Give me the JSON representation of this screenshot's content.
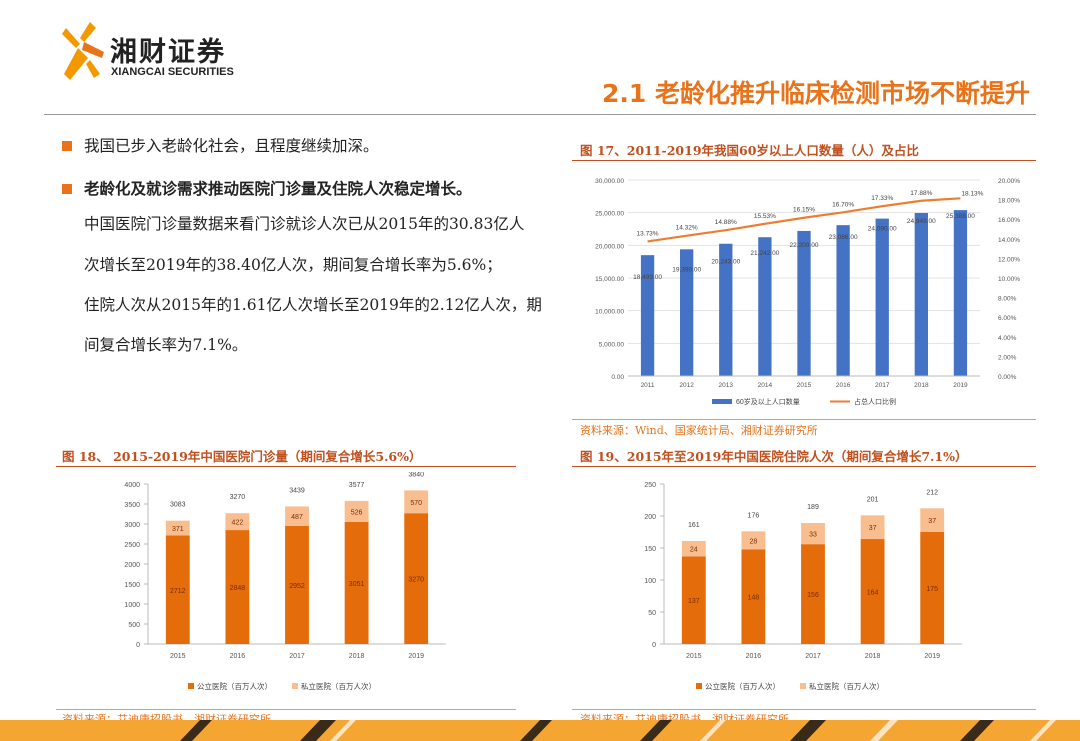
{
  "header": {
    "logo_cn": "湘财证券",
    "logo_en": "XIANGCAI SECURITIES",
    "page_title": "2.1 老龄化推升临床检测市场不断提升"
  },
  "bullets": {
    "b1": "我国已步入老龄化社会，且程度继续加深。",
    "b2": "老龄化及就诊需求推动医院门诊量及住院人次稳定增长。",
    "lines": [
      "中国医院门诊量数据来看门诊就诊人次已从2015年的30.83亿人",
      "次增长至2019年的38.40亿人次，期间复合增长率为5.6%；",
      "住院人次从2015年的1.61亿人次增长至2019年的2.12亿人次，期",
      "间复合增长率为7.1%。"
    ]
  },
  "figures": {
    "fig17": {
      "caption": "图 17、2011-2019年我国60岁以上人口数量（人）及占比",
      "source": "资料来源：Wind、国家统计局、湘财证券研究所"
    },
    "fig18": {
      "caption": "图 18、 2015-2019年中国医院门诊量（期间复合增长5.6%）",
      "source": "资料来源：艾迪康招股书、湘财证券研究所"
    },
    "fig19": {
      "caption": "图 19、2015年至2019年中国医院住院人次（期间复合增长7.1%）",
      "source": "资料来源：艾迪康招股书、湘财证券研究所"
    }
  },
  "chart_data": [
    {
      "type": "bar",
      "id": "fig17",
      "categories": [
        "2011",
        "2012",
        "2013",
        "2014",
        "2015",
        "2016",
        "2017",
        "2018",
        "2019"
      ],
      "series": [
        {
          "name": "60岁及以上人口数量",
          "values": [
            18499.0,
            19390.0,
            20243.0,
            21242.0,
            22200.0,
            23086.0,
            24090.0,
            24949.0,
            25388.0
          ],
          "labels": [
            "18,499.00",
            "19,390.00",
            "20,243.00",
            "21,242.00",
            "22,200.00",
            "23,086.00",
            "24,090.00",
            "24,949.00",
            "25,388.00"
          ],
          "color": "#4472C4",
          "axis": "left"
        },
        {
          "name": "占总人口比例",
          "type": "line",
          "values": [
            13.73,
            14.32,
            14.88,
            15.53,
            16.15,
            16.7,
            17.33,
            17.88,
            18.13
          ],
          "labels": [
            "13.73%",
            "14.32%",
            "14.88%",
            "15.53%",
            "16.15%",
            "16.70%",
            "17.33%",
            "17.88%",
            "18.13%"
          ],
          "color": "#ED7D31",
          "axis": "right"
        }
      ],
      "y_left": {
        "min": 0,
        "max": 30000,
        "ticks": [
          "0.00",
          "5,000.00",
          "10,000.00",
          "15,000.00",
          "20,000.00",
          "25,000.00",
          "30,000.00"
        ]
      },
      "y_right": {
        "min": 0,
        "max": 20,
        "ticks": [
          "0.00%",
          "2.00%",
          "4.00%",
          "6.00%",
          "8.00%",
          "10.00%",
          "12.00%",
          "14.00%",
          "16.00%",
          "18.00%",
          "20.00%"
        ]
      },
      "grid": true,
      "legend": "bottom"
    },
    {
      "type": "bar",
      "id": "fig18",
      "stacked": true,
      "categories": [
        "2015",
        "2016",
        "2017",
        "2018",
        "2019"
      ],
      "series": [
        {
          "name": "公立医院（百万人次）",
          "values": [
            2712,
            2848,
            2952,
            3051,
            3270
          ],
          "color": "#E46C0A"
        },
        {
          "name": "私立医院（百万人次）",
          "values": [
            371,
            422,
            487,
            526,
            570
          ],
          "color": "#F9BE8F"
        }
      ],
      "totals": [
        3083,
        3270,
        3439,
        3577,
        3840
      ],
      "y": {
        "min": 0,
        "max": 4000,
        "ticks": [
          "0",
          "500",
          "1000",
          "1500",
          "2000",
          "2500",
          "3000",
          "3500",
          "4000"
        ]
      },
      "legend": "bottom"
    },
    {
      "type": "bar",
      "id": "fig19",
      "stacked": true,
      "categories": [
        "2015",
        "2016",
        "2017",
        "2018",
        "2019"
      ],
      "series": [
        {
          "name": "公立医院（百万人次）",
          "values": [
            137,
            148,
            156,
            164,
            175
          ],
          "color": "#E46C0A"
        },
        {
          "name": "私立医院（百万人次）",
          "values": [
            24,
            28,
            33,
            37,
            37
          ],
          "color": "#F9BE8F"
        }
      ],
      "totals": [
        161,
        176,
        189,
        201,
        212
      ],
      "y": {
        "min": 0,
        "max": 250,
        "ticks": [
          "0",
          "50",
          "100",
          "150",
          "200",
          "250"
        ]
      },
      "legend": "bottom"
    }
  ],
  "colors": {
    "accent": "#E8731A",
    "caption": "#C0501E",
    "footer_dark": "#3a2a1a"
  }
}
